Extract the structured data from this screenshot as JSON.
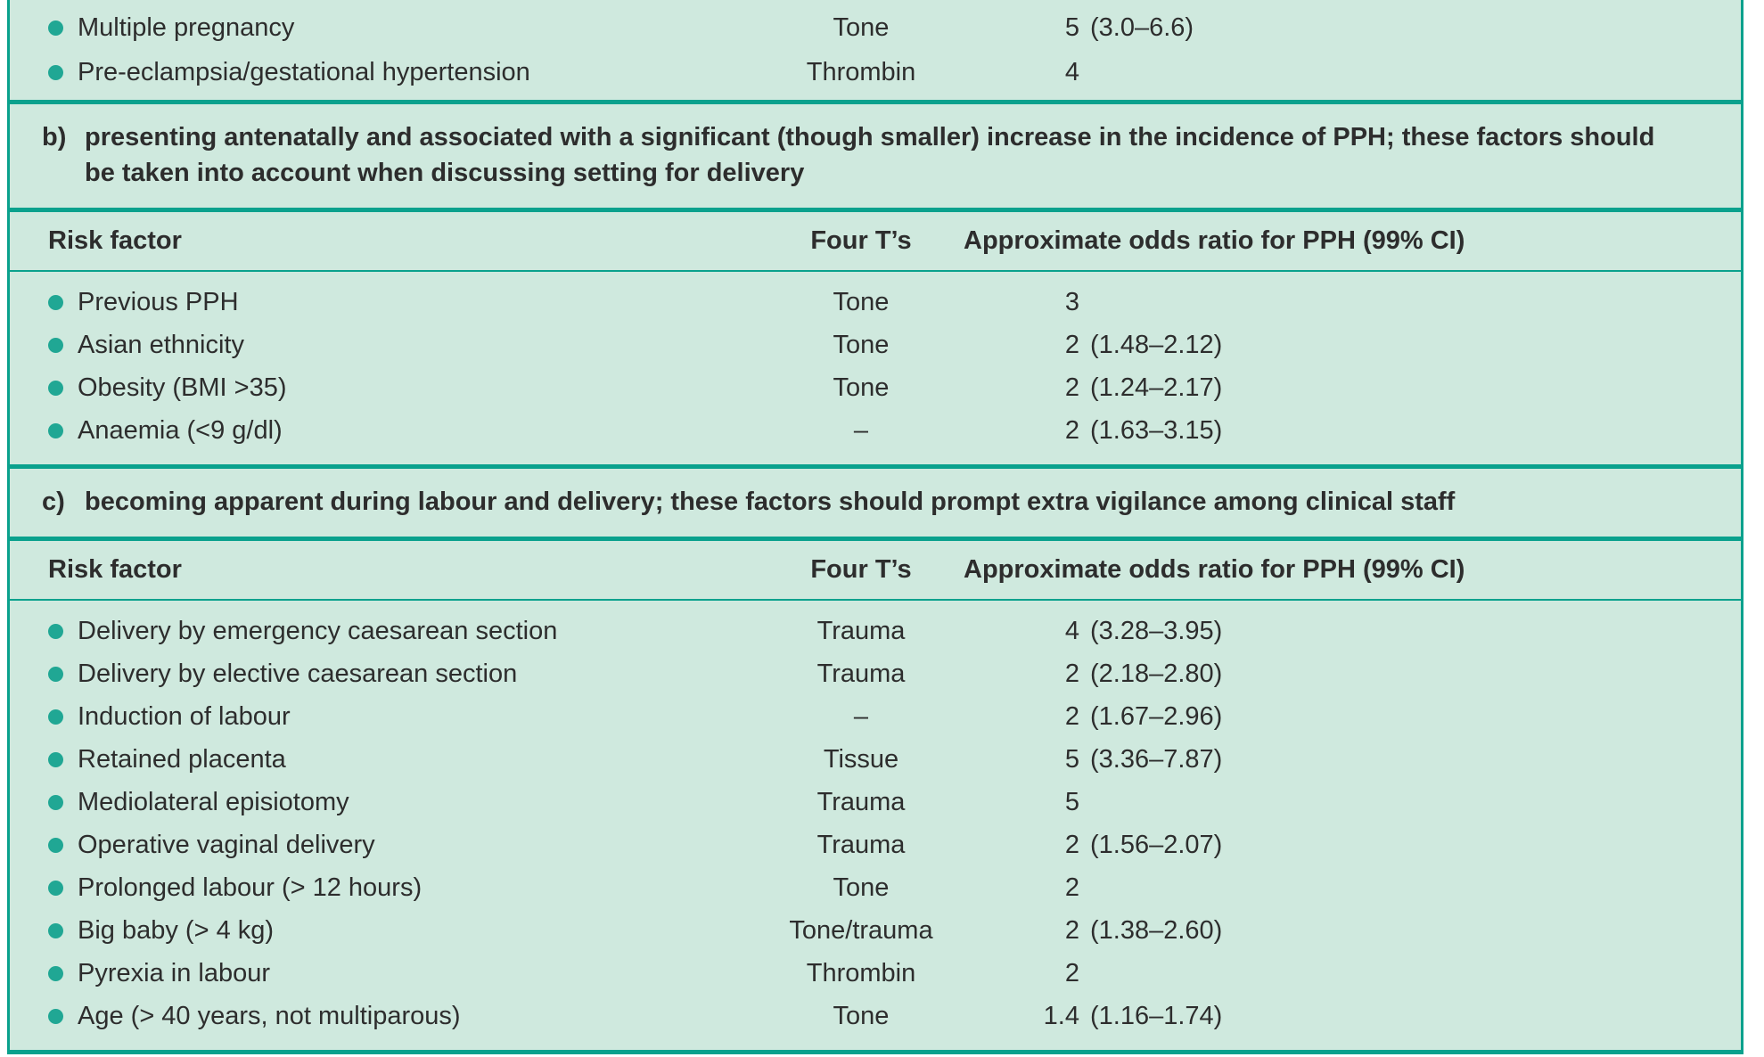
{
  "colors": {
    "page_background": "#ffffff",
    "table_background": "#cfe9de",
    "rule_teal": "#0aa18d",
    "bullet_teal": "#20a794",
    "text": "#2d2d2d"
  },
  "table": {
    "intro_rows": [
      {
        "risk_factor": "Multiple pregnancy",
        "four_ts": "Tone",
        "odds": "5",
        "ci": "(3.0–6.6)"
      },
      {
        "risk_factor": "Pre-eclampsia/gestational hypertension",
        "four_ts": "Thrombin",
        "odds": "4",
        "ci": ""
      }
    ],
    "sections": [
      {
        "label": "b)",
        "heading": "presenting antenatally and associated with a significant (though smaller) increase in the incidence of PPH; these factors should be taken into account when discussing setting for delivery",
        "columns": {
          "risk_factor": "Risk factor",
          "four_ts": "Four T’s",
          "odds": "Approximate odds ratio for PPH (99% CI)"
        },
        "rows": [
          {
            "risk_factor": "Previous PPH",
            "four_ts": "Tone",
            "odds": "3",
            "ci": ""
          },
          {
            "risk_factor": "Asian ethnicity",
            "four_ts": "Tone",
            "odds": "2",
            "ci": "(1.48–2.12)"
          },
          {
            "risk_factor": "Obesity (BMI >35)",
            "four_ts": "Tone",
            "odds": "2",
            "ci": "(1.24–2.17)"
          },
          {
            "risk_factor": "Anaemia (<9 g/dl)",
            "four_ts": "–",
            "odds": "2",
            "ci": "(1.63–3.15)"
          }
        ]
      },
      {
        "label": "c)",
        "heading": "becoming apparent during labour and delivery; these factors should prompt extra vigilance among clinical staff",
        "columns": {
          "risk_factor": "Risk factor",
          "four_ts": "Four T’s",
          "odds": "Approximate odds ratio for PPH (99% CI)"
        },
        "rows": [
          {
            "risk_factor": "Delivery by emergency caesarean section",
            "four_ts": "Trauma",
            "odds": "4",
            "ci": "(3.28–3.95)"
          },
          {
            "risk_factor": "Delivery by elective caesarean section",
            "four_ts": "Trauma",
            "odds": "2",
            "ci": "(2.18–2.80)"
          },
          {
            "risk_factor": "Induction of labour",
            "four_ts": "–",
            "odds": "2",
            "ci": "(1.67–2.96)"
          },
          {
            "risk_factor": "Retained placenta",
            "four_ts": "Tissue",
            "odds": "5",
            "ci": "(3.36–7.87)"
          },
          {
            "risk_factor": "Mediolateral episiotomy",
            "four_ts": "Trauma",
            "odds": "5",
            "ci": ""
          },
          {
            "risk_factor": "Operative vaginal delivery",
            "four_ts": "Trauma",
            "odds": "2",
            "ci": "(1.56–2.07)"
          },
          {
            "risk_factor": "Prolonged labour (> 12 hours)",
            "four_ts": "Tone",
            "odds": "2",
            "ci": ""
          },
          {
            "risk_factor": "Big baby (> 4 kg)",
            "four_ts": "Tone/trauma",
            "odds": "2",
            "ci": "(1.38–2.60)"
          },
          {
            "risk_factor": "Pyrexia in labour",
            "four_ts": "Thrombin",
            "odds": "2",
            "ci": ""
          },
          {
            "risk_factor": "Age (> 40 years, not multiparous)",
            "four_ts": "Tone",
            "odds": "1.4",
            "ci": "(1.16–1.74)"
          }
        ]
      }
    ]
  }
}
